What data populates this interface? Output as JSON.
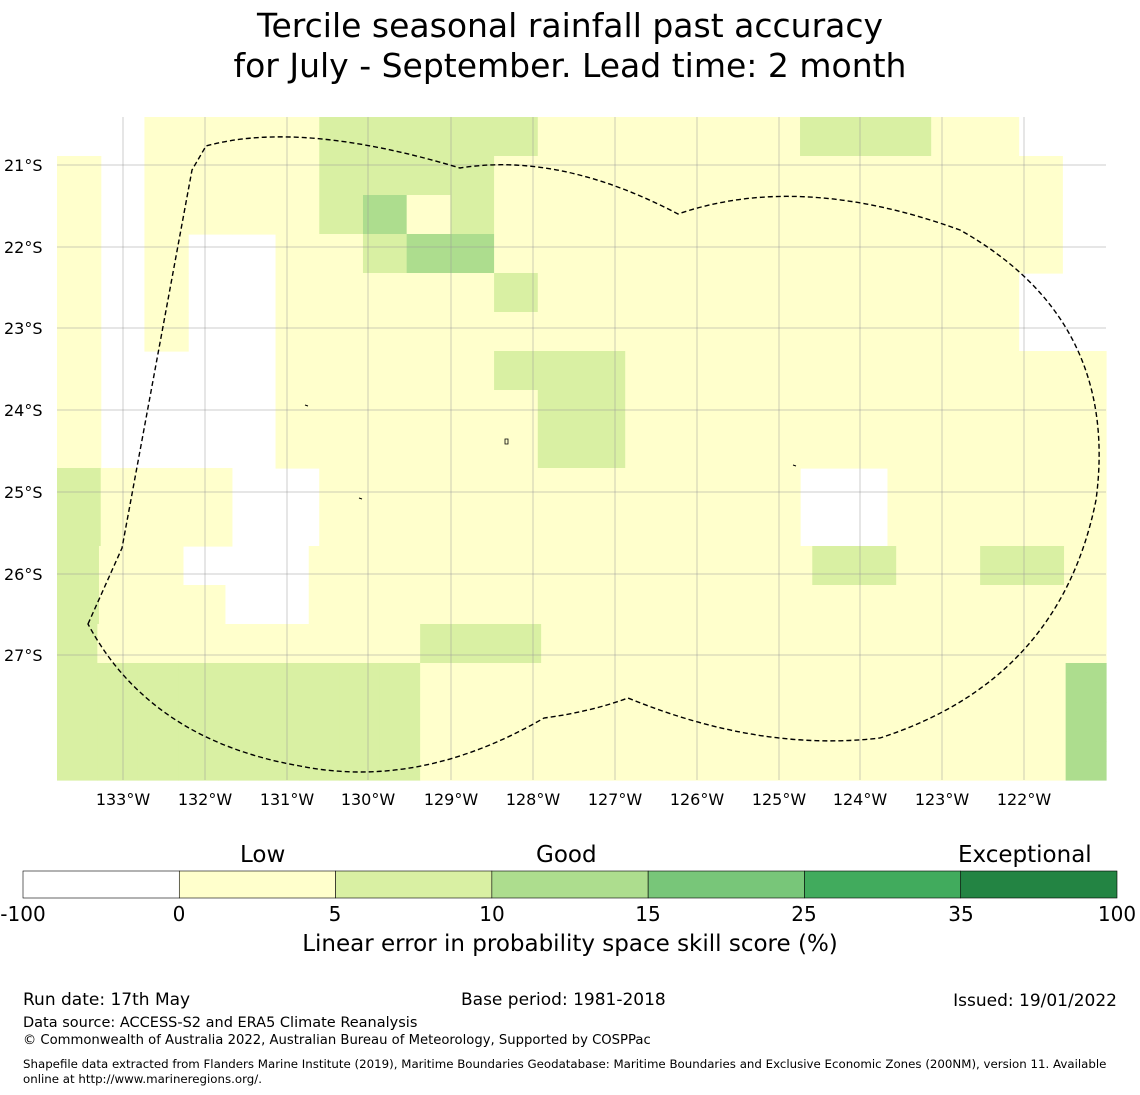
{
  "title": {
    "line1": "Tercile seasonal rainfall past accuracy",
    "line2": "for July - September. Lead time: 2 month"
  },
  "map": {
    "lat_labels": [
      "21°S",
      "22°S",
      "23°S",
      "24°S",
      "25°S",
      "26°S",
      "27°S"
    ],
    "lon_labels": [
      "133°W",
      "132°W",
      "131°W",
      "130°W",
      "129°W",
      "128°W",
      "127°W",
      "126°W",
      "125°W",
      "124°W",
      "123°W",
      "122°W"
    ],
    "class_colors": [
      "#ffffff",
      "#ffffcc",
      "#d9f0a3",
      "#addd8e",
      "#78c679",
      "#41ab5d",
      "#238443"
    ],
    "grid_rows": [
      "..11112222211111122211..",
      "1.111122221111111111111.",
      "1.111123121111111111111.",
      "1.1..112331111111111111.",
      "1.1..11111211111111111..",
      "1.1..11111111111111111..",
      "1....1111122211111111111",
      "1....1111112211111111111",
      "1....1111112211111111111",
      "2111..11111111111..11111",
      "2111..11111111111..11111",
      "211...1111111111112211221",
      "2111..1111111111111111111",
      "21111111122211111111111111",
      "22222222211111111111111113",
      "22222222211111111111111113",
      "22222222211111111111111113"
    ],
    "zone_outline": "dashed"
  },
  "colorbar": {
    "categories": [
      "Low",
      "Good",
      "Exceptional"
    ],
    "ticks": [
      "-100",
      "0",
      "5",
      "10",
      "15",
      "25",
      "35",
      "100"
    ],
    "label": "Linear error in probability space skill score (%)"
  },
  "footer": {
    "run_date": "Run date: 17th May",
    "base_period": "Base period: 1981-2018",
    "issued": "Issued: 19/01/2022",
    "data_source": "Data source: ACCESS-S2 and ERA5 Climate Reanalysis",
    "copyright": "© Commonwealth of Australia 2022, Australian Bureau of Meteorology, Supported by COSPPac",
    "shapefile": "Shapefile data extracted from Flanders Marine Institute (2019), Maritime Boundaries Geodatabase: Maritime Boundaries and Exclusive Economic Zones (200NM), version 11. Available online at http://www.marineregions.org/."
  }
}
